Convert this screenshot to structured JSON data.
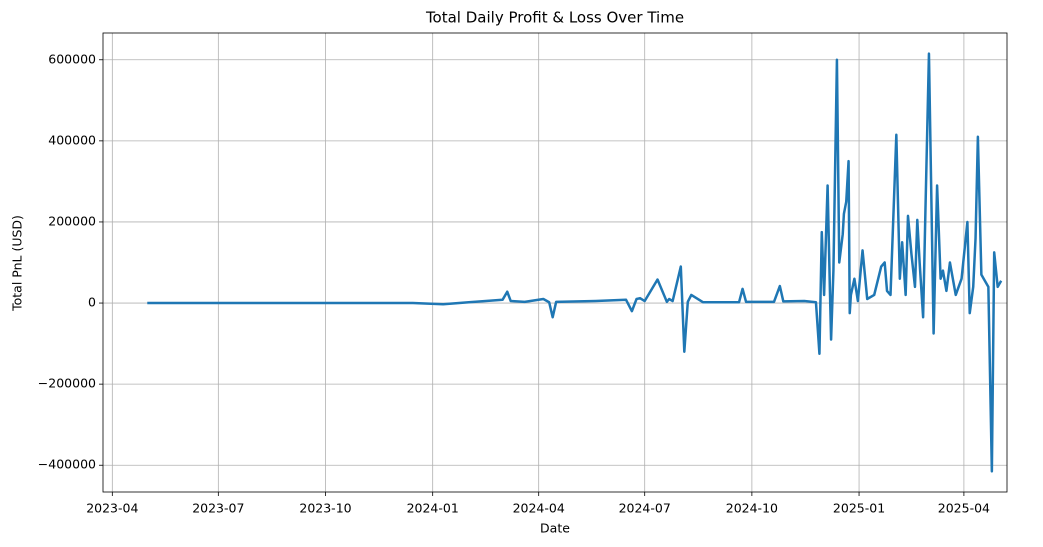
{
  "chart_data": {
    "type": "line",
    "title": "Total Daily Profit & Loss Over Time",
    "x_label": "Date",
    "y_label": "Total PnL (USD)",
    "color": "#1f77b4",
    "grid": true,
    "x": [
      "2023-05-01",
      "2023-12-15",
      "2024-01-10",
      "2024-02-01",
      "2024-02-20",
      "2024-03-01",
      "2024-03-05",
      "2024-03-08",
      "2024-03-20",
      "2024-04-05",
      "2024-04-10",
      "2024-04-13",
      "2024-04-16",
      "2024-05-20",
      "2024-06-15",
      "2024-06-20",
      "2024-06-24",
      "2024-06-27",
      "2024-07-01",
      "2024-07-12",
      "2024-07-20",
      "2024-07-22",
      "2024-07-25",
      "2024-08-01",
      "2024-08-04",
      "2024-08-07",
      "2024-08-10",
      "2024-08-20",
      "2024-09-20",
      "2024-09-23",
      "2024-09-26",
      "2024-10-20",
      "2024-10-25",
      "2024-10-28",
      "2024-11-15",
      "2024-11-25",
      "2024-11-28",
      "2024-11-30",
      "2024-12-02",
      "2024-12-05",
      "2024-12-07",
      "2024-12-08",
      "2024-12-10",
      "2024-12-13",
      "2024-12-15",
      "2024-12-18",
      "2024-12-19",
      "2024-12-21",
      "2024-12-23",
      "2024-12-24",
      "2024-12-25",
      "2024-12-28",
      "2024-12-31",
      "2025-01-04",
      "2025-01-08",
      "2025-01-14",
      "2025-01-20",
      "2025-01-23",
      "2025-01-25",
      "2025-01-28",
      "2025-02-02",
      "2025-02-05",
      "2025-02-07",
      "2025-02-10",
      "2025-02-12",
      "2025-02-15",
      "2025-02-18",
      "2025-02-20",
      "2025-02-22",
      "2025-02-25",
      "2025-02-27",
      "2025-03-02",
      "2025-03-04",
      "2025-03-06",
      "2025-03-09",
      "2025-03-12",
      "2025-03-14",
      "2025-03-17",
      "2025-03-20",
      "2025-03-25",
      "2025-03-30",
      "2025-04-04",
      "2025-04-06",
      "2025-04-09",
      "2025-04-11",
      "2025-04-13",
      "2025-04-16",
      "2025-04-18",
      "2025-04-22",
      "2025-04-25",
      "2025-04-27",
      "2025-04-30",
      "2025-05-03"
    ],
    "values": [
      0,
      0,
      -3000,
      2000,
      6000,
      8000,
      28000,
      5000,
      3000,
      10000,
      2000,
      -35000,
      3000,
      5000,
      8000,
      -20000,
      10000,
      12000,
      5000,
      58000,
      3000,
      10000,
      5000,
      90000,
      -120000,
      3000,
      20000,
      2000,
      2000,
      35000,
      3000,
      3000,
      42000,
      4000,
      5000,
      2000,
      -125000,
      175000,
      20000,
      290000,
      30000,
      -90000,
      80000,
      600000,
      100000,
      170000,
      220000,
      250000,
      350000,
      -25000,
      20000,
      60000,
      5000,
      130000,
      10000,
      20000,
      90000,
      100000,
      30000,
      20000,
      415000,
      60000,
      150000,
      20000,
      215000,
      120000,
      40000,
      205000,
      100000,
      -35000,
      230000,
      615000,
      270000,
      -75000,
      290000,
      60000,
      80000,
      30000,
      100000,
      20000,
      60000,
      200000,
      -25000,
      40000,
      160000,
      410000,
      70000,
      60000,
      40000,
      -415000,
      125000,
      40000,
      55000
    ],
    "xlim": [
      "2023-03-24",
      "2025-05-08"
    ],
    "xticks": [
      "2023-04",
      "2023-07",
      "2023-10",
      "2024-01",
      "2024-04",
      "2024-07",
      "2024-10",
      "2025-01",
      "2025-04"
    ],
    "ylim": [
      -466000,
      666000
    ],
    "yticks": [
      {
        "value": -400000,
        "label": "−400000"
      },
      {
        "value": -200000,
        "label": "−200000"
      },
      0,
      200000,
      400000,
      600000
    ]
  }
}
